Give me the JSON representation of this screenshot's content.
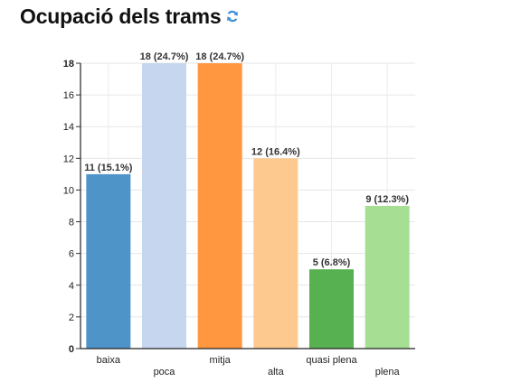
{
  "header": {
    "title": "Ocupació dels trams",
    "refresh_icon": "refresh-icon",
    "refresh_color": "#3a8fd9"
  },
  "chart_data": {
    "type": "bar",
    "title": "",
    "xlabel": "",
    "ylabel": "",
    "categories": [
      "baixa",
      "poca",
      "mitja",
      "alta",
      "quasi plena",
      "plena"
    ],
    "values": [
      11,
      18,
      18,
      12,
      5,
      9
    ],
    "data_labels": [
      "11 (15.1%)",
      "18 (24.7%)",
      "18 (24.7%)",
      "12 (16.4%)",
      "5 (6.8%)",
      "9 (12.3%)"
    ],
    "colors": [
      "#4f94c9",
      "#c5d6ee",
      "#fe9740",
      "#fec98f",
      "#57b150",
      "#a6df94"
    ],
    "ylim": [
      0,
      18
    ],
    "yticks": [
      0,
      2,
      4,
      6,
      8,
      10,
      12,
      14,
      16,
      18
    ],
    "grid": true,
    "legend": "none"
  }
}
